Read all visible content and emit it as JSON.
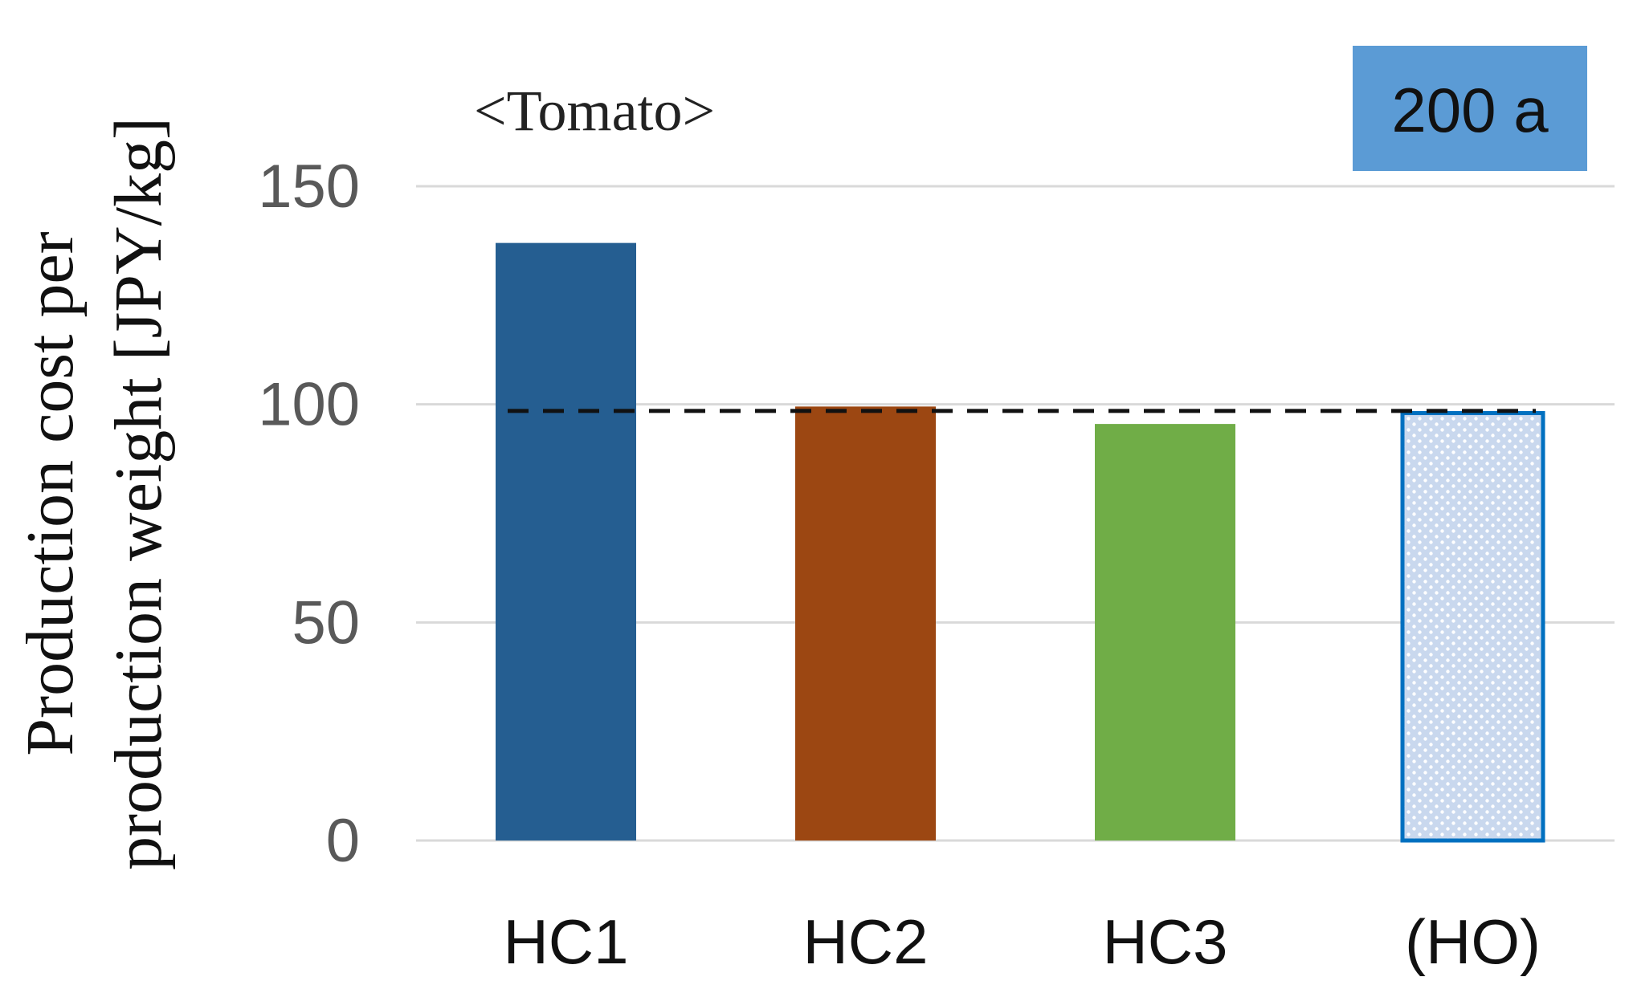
{
  "chart_data": {
    "type": "bar",
    "title": "<Tomato>",
    "ylabel_lines": [
      "Production cost per",
      "production weight [JPY/kg]"
    ],
    "badge": "200 a",
    "categories": [
      "HC1",
      "HC2",
      "HC3",
      "(HO)"
    ],
    "values": [
      137,
      99.5,
      95.5,
      98
    ],
    "bar_colors": [
      "#255e91",
      "#9c4712",
      "#70ad47",
      "#dbe6f5"
    ],
    "bar_patterns": [
      "solid",
      "solid",
      "solid",
      "dotted"
    ],
    "highlight_edge_color": "#0070c0",
    "badge_color": "#5b9bd5",
    "reference_line": 98.5,
    "ylim": [
      0,
      150
    ],
    "yticks": [
      0,
      50,
      100,
      150
    ],
    "grid": true
  }
}
